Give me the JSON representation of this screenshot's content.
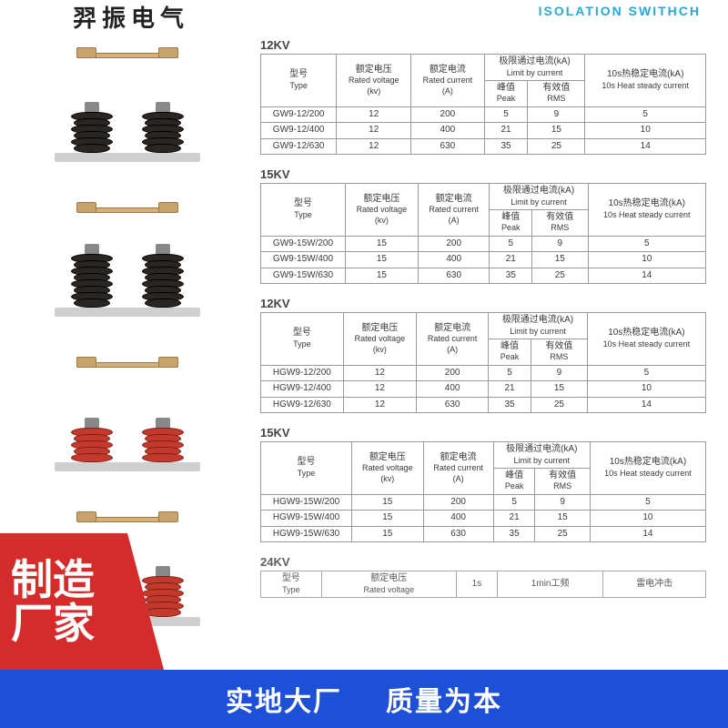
{
  "header": {
    "left_partial": "羿振电气",
    "right_brand": "ISOLATION SWITHCH"
  },
  "columns": {
    "type_cn": "型号",
    "type_en": "Type",
    "voltage_cn": "额定电压",
    "voltage_en": "Rated voltage",
    "voltage_unit": "(kv)",
    "current_cn": "额定电流",
    "current_en": "Rated current",
    "current_unit": "(A)",
    "limit_cn": "极限通过电流(kA)",
    "limit_en": "Limit by current",
    "peak_cn": "峰值",
    "peak_en": "Peak",
    "rms_cn": "有效值",
    "rms_en": "RMS",
    "heat_cn": "10s热稳定电流(kA)",
    "heat_en": "10s Heat steady current"
  },
  "columns24": {
    "col3_cn": "1s",
    "col4_cn": "1min工频",
    "col5_cn": "雷电冲击"
  },
  "sections": [
    {
      "title": "12KV",
      "insulator_color": "black",
      "discs": 6,
      "rows": [
        {
          "type": "GW9-12/200",
          "kv": "12",
          "a": "200",
          "peak": "5",
          "rms": "9",
          "heat": "5"
        },
        {
          "type": "GW9-12/400",
          "kv": "12",
          "a": "400",
          "peak": "21",
          "rms": "15",
          "heat": "10"
        },
        {
          "type": "GW9-12/630",
          "kv": "12",
          "a": "630",
          "peak": "35",
          "rms": "25",
          "heat": "14"
        }
      ]
    },
    {
      "title": "15KV",
      "insulator_color": "black",
      "discs": 8,
      "rows": [
        {
          "type": "GW9-15W/200",
          "kv": "15",
          "a": "200",
          "peak": "5",
          "rms": "9",
          "heat": "5"
        },
        {
          "type": "GW9-15W/400",
          "kv": "15",
          "a": "400",
          "peak": "21",
          "rms": "15",
          "heat": "10"
        },
        {
          "type": "GW9-15W/630",
          "kv": "15",
          "a": "630",
          "peak": "35",
          "rms": "25",
          "heat": "14"
        }
      ]
    },
    {
      "title": "12KV",
      "insulator_color": "red",
      "discs": 5,
      "rows": [
        {
          "type": "HGW9-12/200",
          "kv": "12",
          "a": "200",
          "peak": "5",
          "rms": "9",
          "heat": "5"
        },
        {
          "type": "HGW9-12/400",
          "kv": "12",
          "a": "400",
          "peak": "21",
          "rms": "15",
          "heat": "10"
        },
        {
          "type": "HGW9-12/630",
          "kv": "12",
          "a": "630",
          "peak": "35",
          "rms": "25",
          "heat": "14"
        }
      ]
    },
    {
      "title": "15KV",
      "insulator_color": "red",
      "discs": 6,
      "rows": [
        {
          "type": "HGW9-15W/200",
          "kv": "15",
          "a": "200",
          "peak": "5",
          "rms": "9",
          "heat": "5"
        },
        {
          "type": "HGW9-15W/400",
          "kv": "15",
          "a": "400",
          "peak": "21",
          "rms": "15",
          "heat": "10"
        },
        {
          "type": "HGW9-15W/630",
          "kv": "15",
          "a": "630",
          "peak": "35",
          "rms": "25",
          "heat": "14"
        }
      ]
    }
  ],
  "section24": {
    "title": "24KV"
  },
  "badge": {
    "line1": "制造",
    "line2": "厂家"
  },
  "footer": {
    "left": "实地大厂",
    "right": "质量为本"
  },
  "colors": {
    "brand_blue": "#2aa7d6",
    "footer_blue": "#1d4fd7",
    "badge_red": "#d52b2b",
    "table_border": "#9a9a9a",
    "ins_black": "#2b2523",
    "ins_red": "#c33a2c"
  }
}
